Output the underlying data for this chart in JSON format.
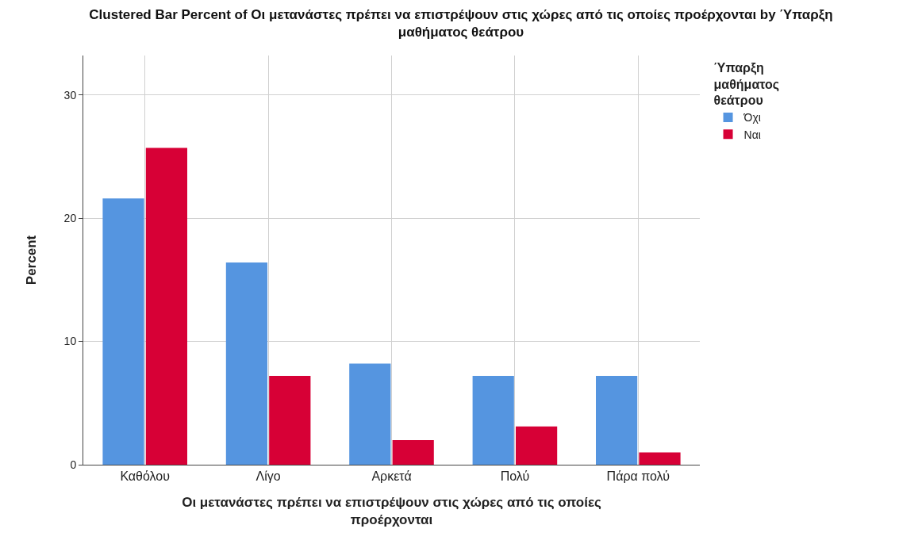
{
  "chart_data": {
    "type": "bar",
    "title": "Clustered Bar Percent of Οι μετανάστες πρέπει να επιστρέψουν στις χώρες από τις οποίες προέρχονται by Ύπαρξη μαθήματος θεάτρου",
    "xlabel": "Οι μετανάστες πρέπει να επιστρέψουν στις χώρες από τις οποίες προέρχονται",
    "ylabel": "Percent",
    "legend_title": "Ύπαρξη μαθήματος θεάτρου",
    "categories": [
      "Καθόλου",
      "Λίγο",
      "Αρκετά",
      "Πολύ",
      "Πάρα πολύ"
    ],
    "series": [
      {
        "name": "Όχι",
        "color": "#5595e0",
        "values": [
          21.6,
          16.4,
          8.2,
          7.2,
          7.2
        ]
      },
      {
        "name": "Ναι",
        "color": "#d70036",
        "values": [
          25.7,
          7.2,
          2.0,
          3.1,
          1.0
        ]
      }
    ],
    "ylim": [
      0,
      33.2
    ],
    "yticks": [
      0,
      10,
      20,
      30
    ],
    "grid": true,
    "legend": "top right"
  }
}
